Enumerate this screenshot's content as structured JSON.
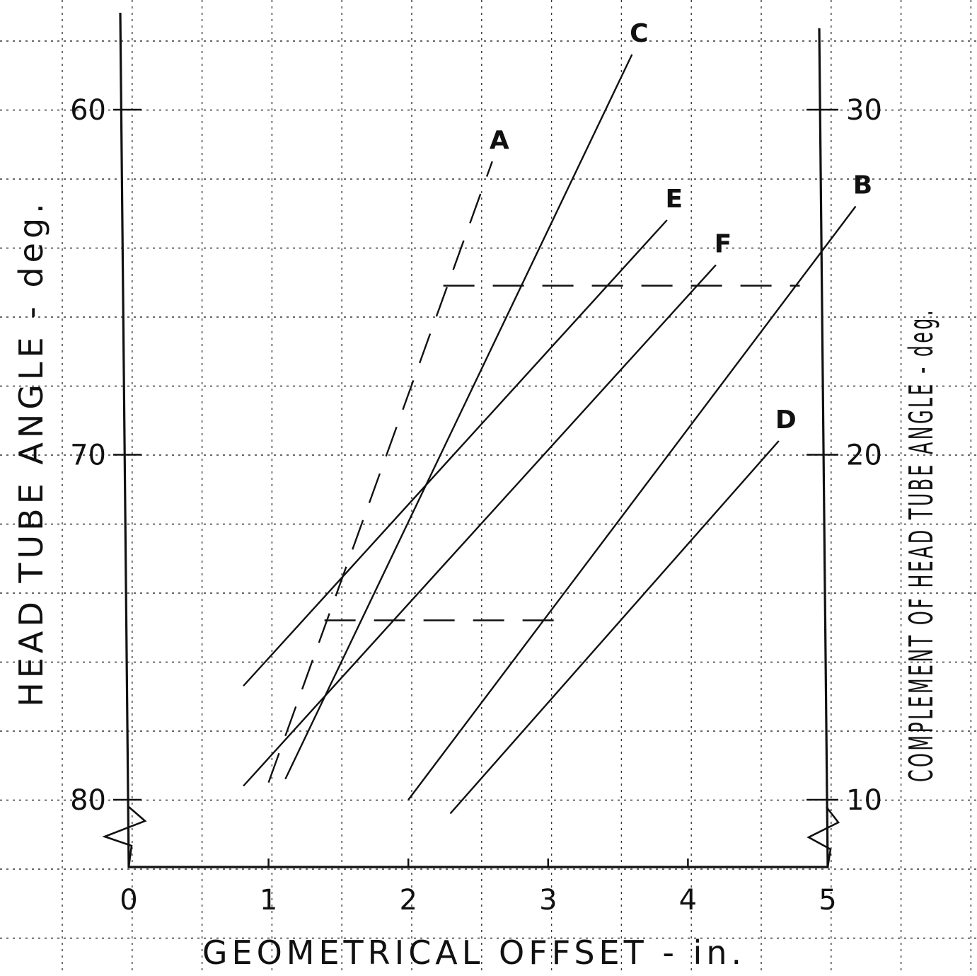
{
  "chart_data": {
    "type": "line",
    "title": "",
    "xlabel": "GEOMETRICAL OFFSET - in.",
    "ylabel_left": "HEAD TUBE ANGLE - deg.",
    "ylabel_right": "COMPLEMENT OF HEAD TUBE ANGLE - deg.",
    "xlim": [
      0,
      5
    ],
    "ylim_left": [
      60,
      80
    ],
    "ylim_right": [
      10,
      30
    ],
    "left_axis_inverted": true,
    "x_ticks": [
      "0",
      "1",
      "2",
      "3",
      "4",
      "5"
    ],
    "y_ticks_left": [
      "60",
      "70",
      "80"
    ],
    "y_ticks_right": [
      "30",
      "20",
      "10"
    ],
    "grid": true,
    "axis_break": true,
    "series": [
      {
        "name": "A",
        "style": "long-dash",
        "x": [
          1.0,
          2.6
        ],
        "y": [
          79.5,
          61.5
        ]
      },
      {
        "name": "C",
        "style": "solid",
        "x": [
          1.12,
          3.6
        ],
        "y": [
          79.4,
          58.4
        ]
      },
      {
        "name": "E",
        "style": "solid",
        "x": [
          0.82,
          3.85
        ],
        "y": [
          76.7,
          63.2
        ]
      },
      {
        "name": "F",
        "style": "solid",
        "x": [
          0.82,
          4.2
        ],
        "y": [
          79.6,
          64.5
        ]
      },
      {
        "name": "B",
        "style": "solid",
        "x": [
          2.0,
          5.2
        ],
        "y": [
          80.0,
          62.8
        ]
      },
      {
        "name": "D",
        "style": "solid",
        "x": [
          2.3,
          4.65
        ],
        "y": [
          80.4,
          69.6
        ]
      }
    ],
    "reference_lines": [
      {
        "x": [
          2.25,
          4.8
        ],
        "y": 65.1
      },
      {
        "x": [
          1.4,
          3.1
        ],
        "y": 74.8
      }
    ]
  }
}
